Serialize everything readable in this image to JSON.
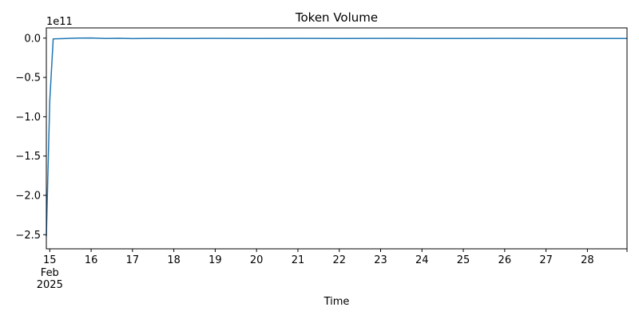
{
  "chart_data": {
    "type": "line",
    "title": "Token Volume",
    "xlabel": "Time",
    "ylabel": "",
    "y_offset_label": "1e11",
    "y_scale": 100000000000.0,
    "x_start": "2025-02-14T22:00",
    "x_end": "2025-02-28T23:00",
    "x_tick_labels": [
      "15",
      "16",
      "17",
      "18",
      "19",
      "20",
      "21",
      "22",
      "23",
      "24",
      "25",
      "26",
      "27",
      "28"
    ],
    "x_tick_dates": [
      "2025-02-15",
      "2025-02-16",
      "2025-02-17",
      "2025-02-18",
      "2025-02-19",
      "2025-02-20",
      "2025-02-21",
      "2025-02-22",
      "2025-02-23",
      "2025-02-24",
      "2025-02-25",
      "2025-02-26",
      "2025-02-27",
      "2025-02-28"
    ],
    "x_tick_sublabels": [
      "Feb",
      "2025"
    ],
    "y_tick_labels": [
      "0.0",
      "−0.5",
      "−1.0",
      "−1.5",
      "−2.0",
      "−2.5"
    ],
    "y_ticks": [
      0.0,
      -0.5,
      -1.0,
      -1.5,
      -2.0,
      -2.5
    ],
    "ylim": [
      -2.68,
      0.13
    ],
    "grid": false,
    "legend": "none",
    "line_color": "#1f77b4",
    "series": [
      {
        "x": [
          "2025-02-14T22:00",
          "2025-02-15T00:00",
          "2025-02-15T02:00",
          "2025-02-15T04:00",
          "2025-02-15T08:00",
          "2025-02-15T16:00",
          "2025-02-16T00:00",
          "2025-02-16T08:00",
          "2025-02-16T16:00",
          "2025-02-17T00:00",
          "2025-02-17T12:00",
          "2025-02-18T00:00",
          "2025-02-18T12:00",
          "2025-02-19T00:00",
          "2025-02-20T00:00",
          "2025-02-21T00:00",
          "2025-02-22T00:00",
          "2025-02-23T00:00",
          "2025-02-24T00:00",
          "2025-02-25T00:00",
          "2025-02-26T00:00",
          "2025-02-27T00:00",
          "2025-02-28T00:00",
          "2025-02-28T23:00"
        ],
        "values": [
          -2.52,
          -0.8,
          -0.01,
          -0.008,
          -0.006,
          0.0,
          0.002,
          -0.004,
          -0.002,
          -0.006,
          -0.003,
          -0.005,
          -0.004,
          -0.003,
          -0.004,
          -0.003,
          -0.004,
          -0.003,
          -0.004,
          -0.004,
          -0.003,
          -0.004,
          -0.004,
          -0.004
        ]
      }
    ]
  }
}
